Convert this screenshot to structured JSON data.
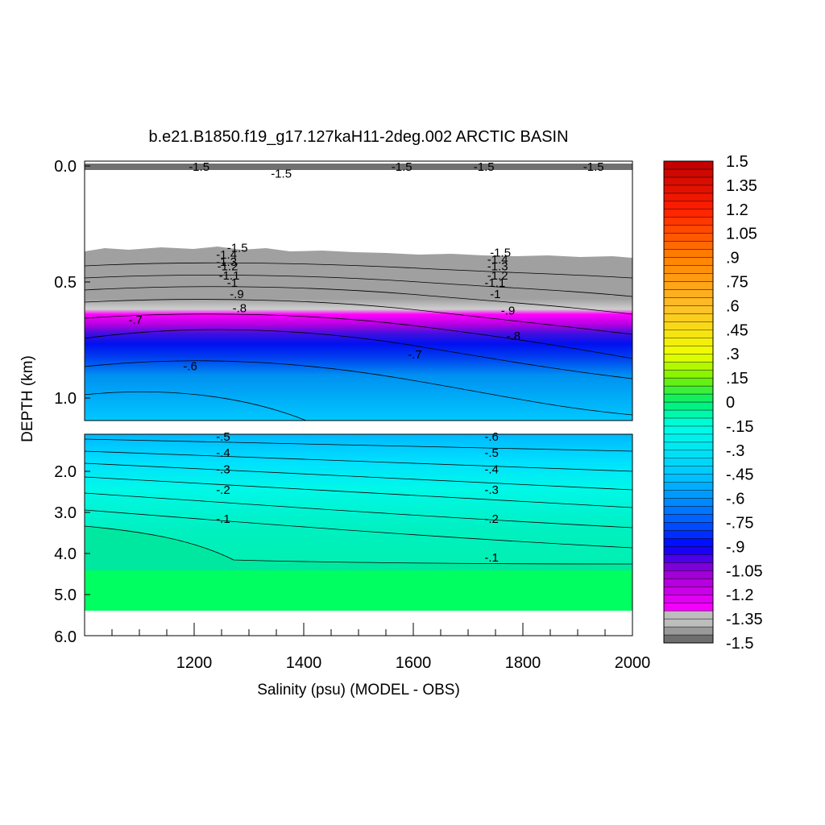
{
  "chart_data": {
    "type": "heatmap",
    "title": "b.e21.B1850.f19_g17.127kaH11-2deg.002 ARCTIC BASIN",
    "xlabel": "Salinity (psu) (MODEL - OBS)",
    "ylabel": "DEPTH (km)",
    "xlim": [
      1000,
      2000
    ],
    "x_ticks": [
      "1200",
      "1400",
      "1600",
      "1800",
      "2000"
    ],
    "upper_panel": {
      "ylim": [
        0.0,
        1.1
      ],
      "y_ticks": [
        "0.0",
        "0.5",
        "1.0"
      ]
    },
    "lower_panel": {
      "ylim": [
        1.0,
        6.0
      ],
      "y_ticks": [
        "2.0",
        "3.0",
        "4.0",
        "5.0",
        "6.0"
      ]
    },
    "colorbar": {
      "levels": [
        -1.5,
        -1.45,
        -1.4,
        -1.35,
        -1.3,
        -1.25,
        -1.2,
        -1.15,
        -1.1,
        -1.05,
        -1.0,
        -0.95,
        -0.9,
        -0.85,
        -0.8,
        -0.75,
        -0.7,
        -0.65,
        -0.6,
        -0.55,
        -0.5,
        -0.45,
        -0.4,
        -0.35,
        -0.3,
        -0.25,
        -0.2,
        -0.15,
        -0.1,
        -0.05,
        0,
        0.05,
        0.1,
        0.15,
        0.2,
        0.25,
        0.3,
        0.35,
        0.4,
        0.45,
        0.5,
        0.55,
        0.6,
        0.65,
        0.7,
        0.75,
        0.8,
        0.85,
        0.9,
        0.95,
        1.0,
        1.05,
        1.1,
        1.15,
        1.2,
        1.25,
        1.3,
        1.35,
        1.4,
        1.45,
        1.5
      ],
      "tick_labels": [
        "-1.5",
        "-1.35",
        "-1.2",
        "-1.05",
        "-.9",
        "-.75",
        "-.6",
        "-.45",
        "-.3",
        "-.15",
        "0",
        ".15",
        ".3",
        ".45",
        ".6",
        ".75",
        ".9",
        "1.05",
        "1.2",
        "1.35",
        "1.5"
      ]
    },
    "contours_upper": [
      {
        "label": "-.6",
        "x": 1180,
        "y": 0.88
      },
      {
        "label": "-.7",
        "x": 1080,
        "y": 0.68
      },
      {
        "label": "-.7",
        "x": 1590,
        "y": 0.83
      },
      {
        "label": "-.8",
        "x": 1270,
        "y": 0.63
      },
      {
        "label": "-.8",
        "x": 1770,
        "y": 0.75
      },
      {
        "label": "-.9",
        "x": 1265,
        "y": 0.57
      },
      {
        "label": "-.9",
        "x": 1760,
        "y": 0.64
      },
      {
        "label": "-1",
        "x": 1260,
        "y": 0.52
      },
      {
        "label": "-1",
        "x": 1740,
        "y": 0.57
      },
      {
        "label": "-1.1",
        "x": 1245,
        "y": 0.49
      },
      {
        "label": "-1.1",
        "x": 1730,
        "y": 0.52
      },
      {
        "label": "-1.2",
        "x": 1242,
        "y": 0.45
      },
      {
        "label": "-1.2",
        "x": 1735,
        "y": 0.49
      },
      {
        "label": "-1.3",
        "x": 1240,
        "y": 0.43
      },
      {
        "label": "-1.3",
        "x": 1735,
        "y": 0.45
      },
      {
        "label": "-1.4",
        "x": 1240,
        "y": 0.4
      },
      {
        "label": "-1.4",
        "x": 1735,
        "y": 0.42
      },
      {
        "label": "-1.5",
        "x": 1260,
        "y": 0.37
      },
      {
        "label": "-1.5",
        "x": 1740,
        "y": 0.39
      },
      {
        "label": "-1.5",
        "x": 1190,
        "y": 0.02
      },
      {
        "label": "-1.5",
        "x": 1340,
        "y": 0.05
      },
      {
        "label": "-1.5",
        "x": 1560,
        "y": 0.02
      },
      {
        "label": "-1.5",
        "x": 1710,
        "y": 0.02
      },
      {
        "label": "-1.5",
        "x": 1910,
        "y": 0.02
      }
    ],
    "contours_lower": [
      {
        "label": "-.5",
        "x": 1240,
        "y": 1.25
      },
      {
        "label": "-.4",
        "x": 1240,
        "y": 1.65
      },
      {
        "label": "-.3",
        "x": 1240,
        "y": 2.05
      },
      {
        "label": "-.2",
        "x": 1240,
        "y": 2.55
      },
      {
        "label": "-.1",
        "x": 1240,
        "y": 3.25
      },
      {
        "label": "-.6",
        "x": 1730,
        "y": 1.25
      },
      {
        "label": "-.5",
        "x": 1730,
        "y": 1.65
      },
      {
        "label": "-.4",
        "x": 1730,
        "y": 2.05
      },
      {
        "label": "-.3",
        "x": 1730,
        "y": 2.55
      },
      {
        "label": "-.2",
        "x": 1730,
        "y": 3.25
      },
      {
        "label": "-.1",
        "x": 1730,
        "y": 4.2
      }
    ]
  }
}
